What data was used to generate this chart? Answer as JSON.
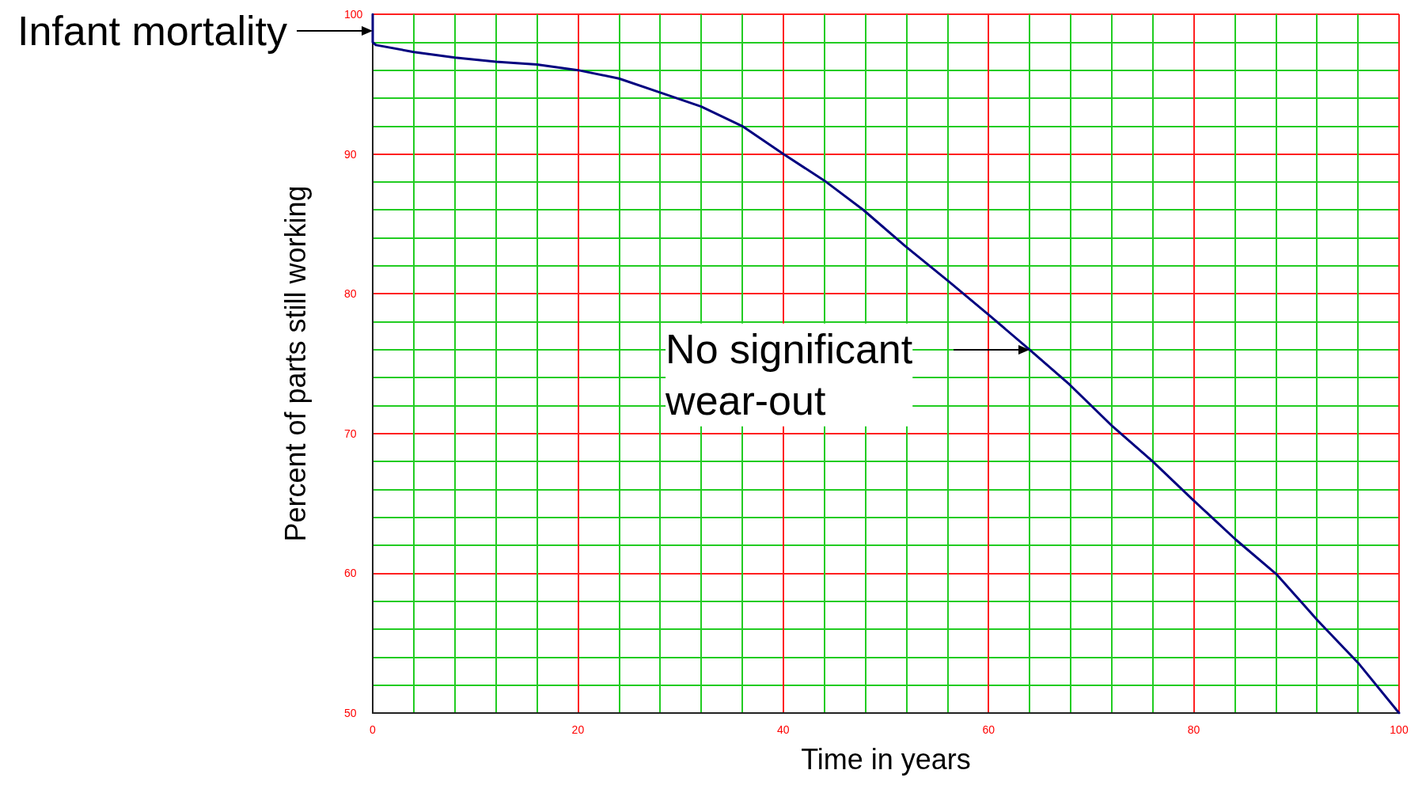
{
  "chart_data": {
    "type": "line",
    "xlabel": "Time in years",
    "ylabel": "Percent of parts still working",
    "x": [
      0,
      0,
      0.3,
      4,
      8,
      12,
      16,
      20,
      24,
      28,
      32,
      36,
      40,
      44,
      47.8,
      51.9,
      56.1,
      60,
      64,
      67.9,
      72.1,
      76,
      80,
      84.1,
      88.1,
      92.1,
      96,
      100
    ],
    "series": [
      {
        "color": "#00007f",
        "values": [
          100,
          98,
          97.8,
          97.3,
          96.9,
          96.6,
          96.4,
          96,
          95.4,
          94.4,
          93.4,
          92,
          90,
          88.1,
          86,
          83.4,
          80.9,
          78.5,
          76,
          73.5,
          70.5,
          68,
          65.2,
          62.4,
          59.9,
          56.6,
          53.6,
          50
        ]
      }
    ],
    "xlim": [
      0,
      100
    ],
    "xticks": [
      0,
      {
        "value": 4,
        "label": null
      },
      {
        "value": 8,
        "label": null
      },
      {
        "value": 12,
        "label": null
      },
      {
        "value": 16,
        "label": null
      },
      20,
      {
        "value": 24,
        "label": null
      },
      {
        "value": 28,
        "label": null
      },
      {
        "value": 32,
        "label": null
      },
      {
        "value": 36,
        "label": null
      },
      40,
      {
        "value": 44,
        "label": null
      },
      {
        "value": 48,
        "label": null
      },
      {
        "value": 52,
        "label": null
      },
      {
        "value": 56,
        "label": null
      },
      60,
      {
        "value": 64,
        "label": null
      },
      {
        "value": 68,
        "label": null
      },
      {
        "value": 72,
        "label": null
      },
      {
        "value": 76,
        "label": null
      },
      80,
      {
        "value": 84,
        "label": null
      },
      {
        "value": 88,
        "label": null
      },
      {
        "value": 92,
        "label": null
      },
      {
        "value": 96,
        "label": null
      },
      100
    ],
    "ylim": [
      50,
      100
    ],
    "yticks": [
      50,
      {
        "value": 52,
        "label": null
      },
      {
        "value": 54,
        "label": null
      },
      {
        "value": 56,
        "label": null
      },
      {
        "value": 58,
        "label": null
      },
      60,
      {
        "value": 62,
        "label": null
      },
      {
        "value": 64,
        "label": null
      },
      {
        "value": 66,
        "label": null
      },
      {
        "value": 68,
        "label": null
      },
      70,
      {
        "value": 72,
        "label": null
      },
      {
        "value": 74,
        "label": null
      },
      {
        "value": 76,
        "label": null
      },
      {
        "value": 78,
        "label": null
      },
      80,
      {
        "value": 82,
        "label": null
      },
      {
        "value": 84,
        "label": null
      },
      {
        "value": 86,
        "label": null
      },
      {
        "value": 88,
        "label": null
      },
      90,
      {
        "value": 92,
        "label": null
      },
      {
        "value": 94,
        "label": null
      },
      {
        "value": 96,
        "label": null
      },
      {
        "value": 98,
        "label": null
      },
      100
    ],
    "grid": true,
    "marker": "none",
    "line_style": "solid",
    "annotations": [
      {
        "text": "Infant mortality",
        "x": 0,
        "y": 98.8
      },
      {
        "text": "No significant\nwear-out",
        "x": 64,
        "y": 76
      }
    ]
  }
}
